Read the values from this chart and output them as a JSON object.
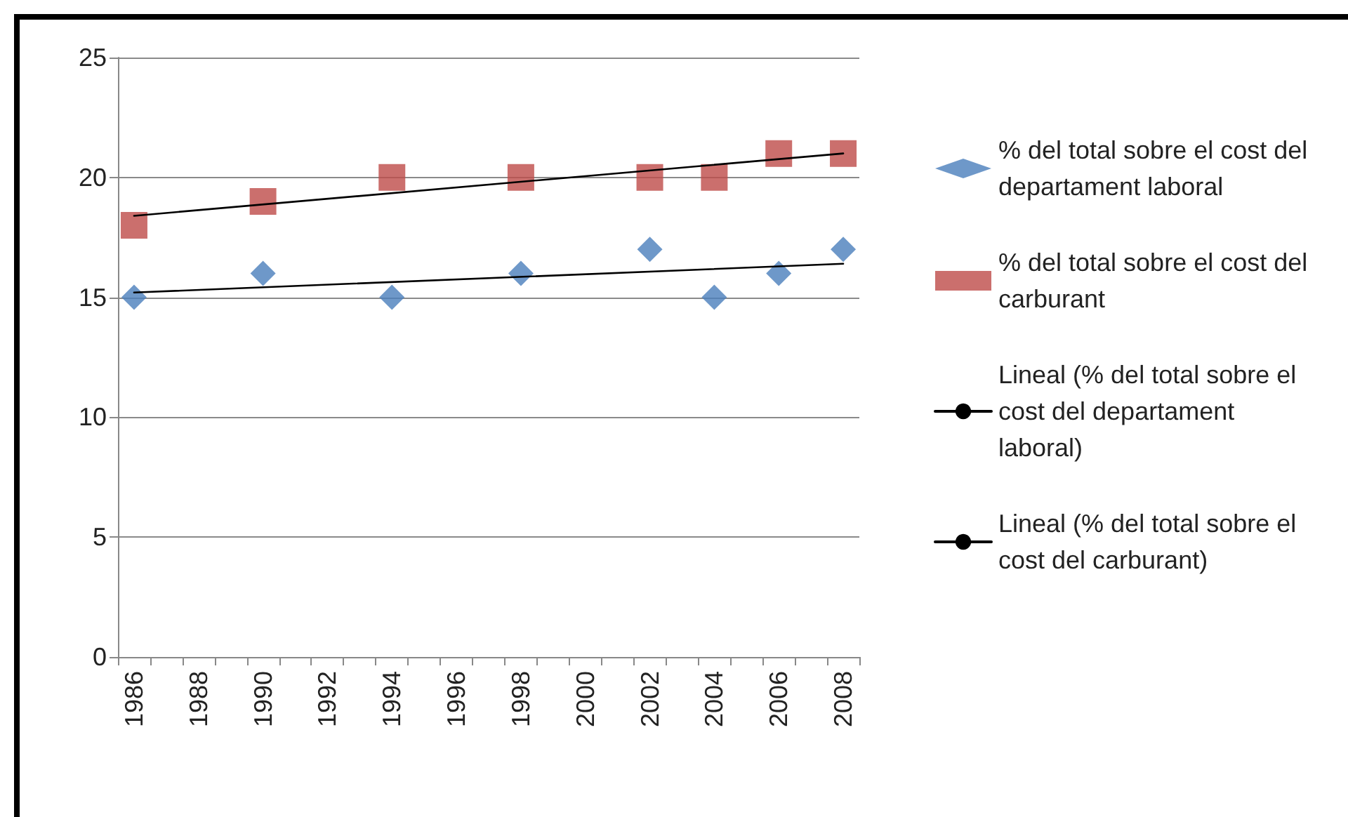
{
  "chart_data": {
    "type": "scatter",
    "categories": [
      "1986",
      null,
      "1988",
      null,
      "1990",
      null,
      "1992",
      null,
      "1994",
      null,
      "1996",
      null,
      "1998",
      null,
      "2000",
      null,
      "2002",
      null,
      "2004",
      null,
      "2006",
      null,
      "2008"
    ],
    "series": [
      {
        "name": "% del total sobre el cost del departament laboral",
        "color": "#4a7ebb",
        "marker": "diamond",
        "values": [
          15,
          null,
          null,
          null,
          16,
          null,
          null,
          null,
          15,
          null,
          null,
          null,
          16,
          null,
          null,
          null,
          17,
          null,
          15,
          null,
          16,
          null,
          17
        ]
      },
      {
        "name": "% del total sobre el cost del carburant",
        "color": "#be4b48",
        "marker": "square",
        "values": [
          18,
          null,
          null,
          null,
          19,
          null,
          null,
          null,
          20,
          null,
          null,
          null,
          20,
          null,
          null,
          null,
          20,
          null,
          20,
          null,
          21,
          null,
          21
        ]
      },
      {
        "name": "Lineal (% del total sobre el cost del departament laboral)",
        "type": "line",
        "color": "#000000",
        "marker": "none",
        "values": [
          15.2,
          null,
          null,
          null,
          null,
          null,
          null,
          null,
          null,
          null,
          null,
          null,
          null,
          null,
          null,
          null,
          null,
          null,
          null,
          null,
          null,
          null,
          16.4
        ]
      },
      {
        "name": "Lineal (% del total sobre el cost del carburant)",
        "type": "line",
        "color": "#000000",
        "marker": "none",
        "values": [
          18.4,
          null,
          null,
          null,
          null,
          null,
          null,
          null,
          null,
          null,
          null,
          null,
          null,
          null,
          null,
          null,
          null,
          null,
          null,
          null,
          null,
          null,
          21.0
        ]
      }
    ],
    "ylim": [
      0,
      25
    ],
    "yticks": [
      0,
      5,
      10,
      15,
      20,
      25
    ],
    "grid": "y",
    "legend": "right"
  }
}
